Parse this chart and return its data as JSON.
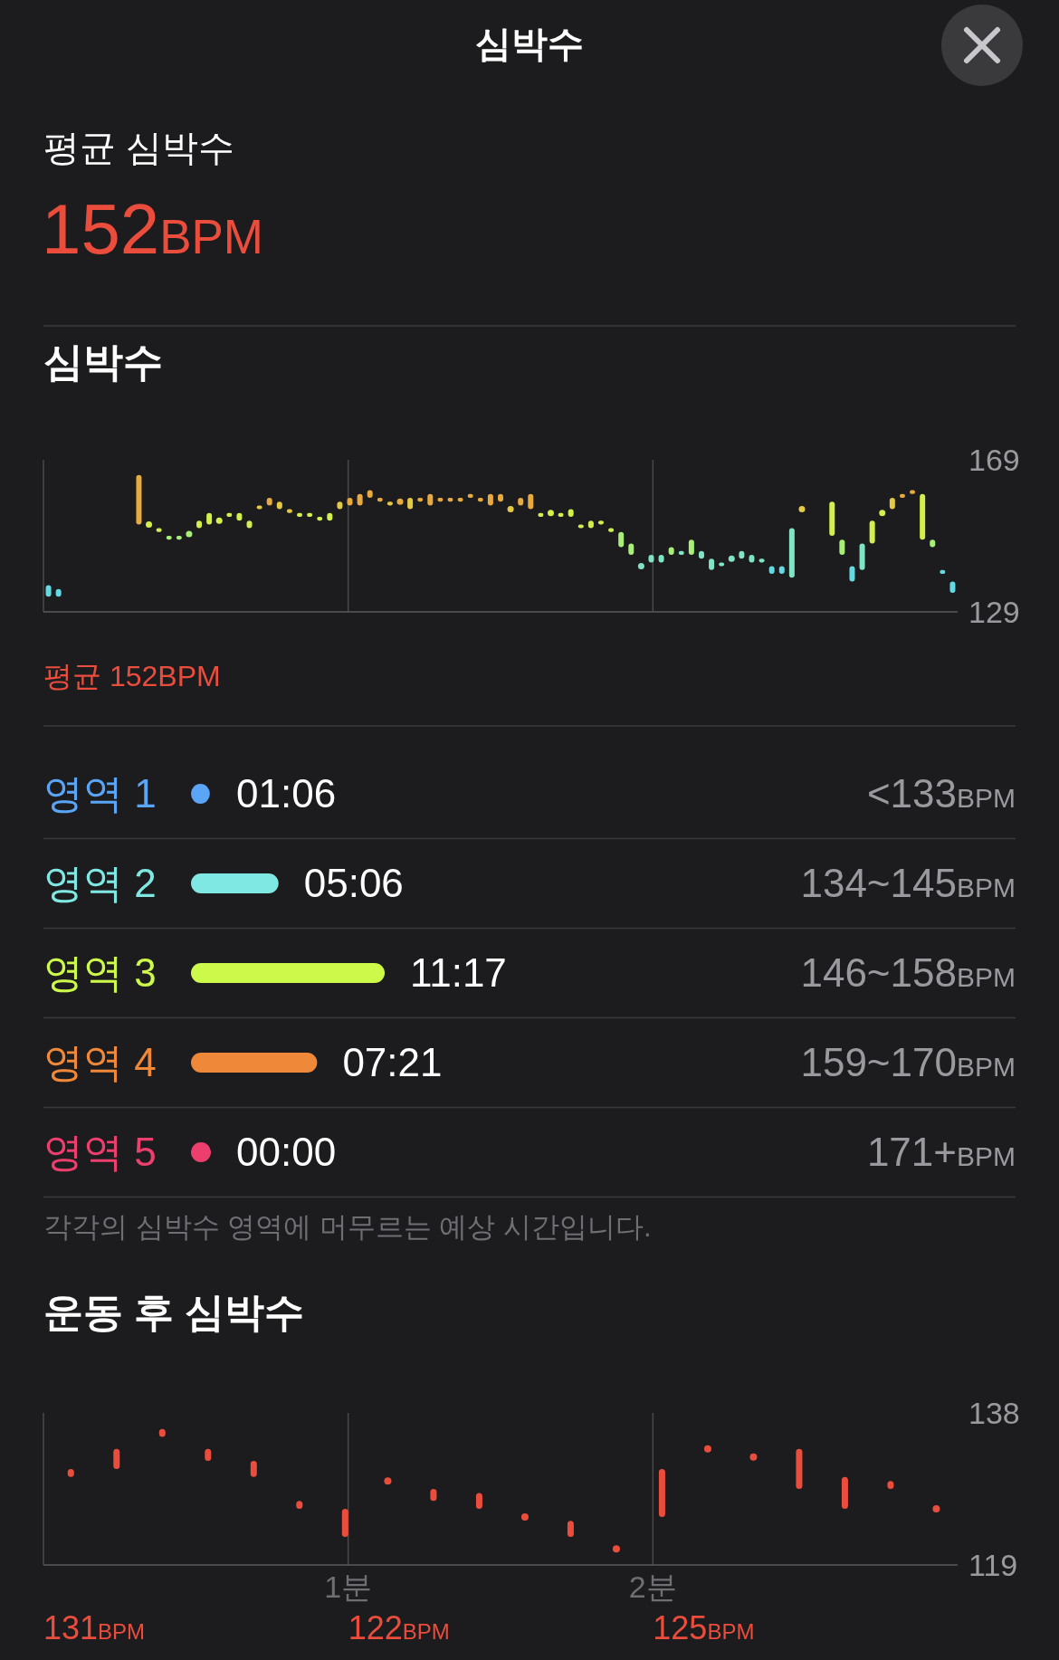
{
  "chart_data": [
    {
      "type": "other",
      "title": "심박수",
      "subtitle": "평균 심박수",
      "annotations": [
        "152BPM"
      ]
    },
    {
      "type": "bar",
      "title": "심박수",
      "categories": [
        null,
        null,
        null,
        null,
        null,
        null,
        null,
        null,
        null,
        null,
        null,
        null,
        null,
        null,
        null,
        null,
        null,
        null,
        null,
        null,
        null,
        null,
        null,
        null,
        null,
        null,
        null,
        null,
        null,
        null,
        null,
        null,
        null,
        null,
        null,
        null,
        null,
        null,
        null,
        null,
        null,
        null,
        null,
        null,
        null,
        null,
        null,
        null,
        null,
        null,
        null,
        null,
        null,
        null,
        null,
        null,
        null,
        null,
        null,
        null,
        null,
        null,
        null,
        null,
        null,
        null,
        null,
        null,
        null,
        null,
        null,
        null,
        null,
        null,
        null,
        null,
        null,
        null,
        null,
        null,
        null,
        null,
        null,
        null,
        null,
        null,
        null,
        null,
        null,
        null,
        null
      ],
      "series": [
        {
          "type": "bar",
          "base": [
            133,
            133,
            null,
            null,
            null,
            null,
            null,
            null,
            null,
            152,
            null,
            150,
            148,
            148,
            null,
            151,
            152,
            null,
            154,
            153,
            151,
            156,
            157,
            156,
            155,
            154,
            154,
            153,
            153,
            156,
            157,
            157,
            159,
            158,
            157,
            null,
            156,
            158,
            157,
            158,
            158,
            158,
            159,
            158,
            157,
            158,
            null,
            157,
            156,
            154,
            null,
            154,
            154,
            151,
            151,
            152,
            150,
            146,
            144,
            null,
            142,
            142,
            144,
            144,
            144,
            143,
            140,
            141,
            null,
            143,
            142,
            142,
            139,
            139,
            138,
            null,
            null,
            null,
            149,
            144,
            137,
            140,
            147,
            null,
            156,
            159,
            160,
            148,
            146,
            139,
            134
          ],
          "values": [
            3,
            2,
            null,
            null,
            null,
            null,
            null,
            null,
            null,
            13,
            null,
            1,
            1,
            1,
            null,
            2,
            3,
            null,
            1,
            2,
            2,
            1,
            2,
            2,
            1,
            1,
            1,
            1,
            2,
            2,
            2,
            3,
            2,
            1,
            1,
            null,
            3,
            1,
            3,
            1,
            1,
            1,
            1,
            1,
            3,
            2,
            null,
            2,
            4,
            1,
            null,
            1,
            2,
            1,
            2,
            1,
            1,
            4,
            3,
            null,
            2,
            2,
            2,
            1,
            4,
            2,
            3,
            1,
            null,
            2,
            2,
            1,
            2,
            2,
            13,
            null,
            null,
            null,
            9,
            4,
            4,
            7,
            6,
            null,
            3,
            1,
            1,
            12,
            2,
            1,
            3
          ],
          "colors": [
            "#62d9e3",
            "#62d9e3",
            null,
            null,
            null,
            null,
            null,
            null,
            null,
            "#e6aa3e",
            null,
            "#d2ef4c",
            "#a8ef78",
            "#a8ef78",
            null,
            "#d2ef4c",
            "#d2ef4c",
            null,
            "#d2ef4c",
            "#d2ef4c",
            "#d2ef4c",
            "#e3c945",
            "#e6aa3e",
            "#e3c945",
            "#e3c945",
            "#d2ef4c",
            "#d2ef4c",
            "#d2ef4c",
            "#d2ef4c",
            "#e3c945",
            "#e6aa3e",
            "#e6aa3e",
            "#e6aa3e",
            "#e6aa3e",
            "#e3c945",
            null,
            "#e3c945",
            "#e6aa3e",
            "#e6aa3e",
            "#e6aa3e",
            "#e6aa3e",
            "#e6aa3e",
            "#e6aa3e",
            "#e6aa3e",
            "#e6aa3e",
            "#e6aa3e",
            null,
            "#e6aa3e",
            "#e6aa3e",
            "#d2ef4c",
            null,
            "#d2ef4c",
            "#d2ef4c",
            "#d2ef4c",
            "#d2ef4c",
            "#d2ef4c",
            "#d2ef4c",
            "#a8ef78",
            "#a8ef78",
            null,
            "#7fe3c4",
            "#7fe3c4",
            "#a8ef78",
            "#7fe3c4",
            "#a8ef78",
            "#7fe3c4",
            "#7fe3c4",
            "#7fe3c4",
            null,
            "#7fe3c4",
            "#7fe3c4",
            "#7fe3c4",
            "#62d9e3",
            "#62d9e3",
            "#7fe3c4",
            null,
            null,
            null,
            "#d2ef4c",
            "#a8ef78",
            "#62d9e3",
            "#7fe3c4",
            "#d2ef4c",
            null,
            "#e3c945",
            "#e6aa3e",
            "#e6aa3e",
            "#d2ef4c",
            "#a8ef78",
            "#62d9e3",
            "#62d9e3"
          ]
        },
        {
          "type": "scatter",
          "values": [
            null,
            null,
            null,
            null,
            null,
            null,
            null,
            null,
            null,
            null,
            152,
            null,
            null,
            null,
            149.5,
            null,
            null,
            153,
            null,
            null,
            null,
            null,
            null,
            null,
            null,
            null,
            null,
            null,
            null,
            null,
            null,
            null,
            null,
            null,
            null,
            158,
            null,
            null,
            null,
            null,
            null,
            null,
            null,
            null,
            null,
            null,
            156,
            null,
            null,
            null,
            155,
            null,
            null,
            null,
            null,
            null,
            null,
            null,
            null,
            141,
            null,
            null,
            null,
            null,
            null,
            null,
            null,
            null,
            143,
            null,
            null,
            null,
            null,
            null,
            null,
            156,
            null,
            null,
            null,
            null,
            null,
            null,
            null,
            155,
            null,
            null,
            null,
            null,
            null,
            null,
            null
          ],
          "colors": [
            null,
            null,
            null,
            null,
            null,
            null,
            null,
            null,
            null,
            null,
            "#d2ef4c",
            null,
            null,
            null,
            "#a8ef78",
            null,
            null,
            "#d2ef4c",
            null,
            null,
            null,
            null,
            null,
            null,
            null,
            null,
            null,
            null,
            null,
            null,
            null,
            null,
            null,
            null,
            null,
            "#e6aa3e",
            null,
            null,
            null,
            null,
            null,
            null,
            null,
            null,
            null,
            null,
            "#e3c945",
            null,
            null,
            null,
            "#d2ef4c",
            null,
            null,
            null,
            null,
            null,
            null,
            null,
            null,
            "#7fe3c4",
            null,
            null,
            null,
            null,
            null,
            null,
            null,
            null,
            "#7fe3c4",
            null,
            null,
            null,
            null,
            null,
            null,
            "#e3c945",
            null,
            null,
            null,
            null,
            null,
            null,
            null,
            "#d2ef4c",
            null,
            null,
            null,
            null,
            null,
            null,
            null
          ]
        }
      ],
      "ylim": [
        129,
        169
      ],
      "yticks": [
        129,
        169
      ],
      "grid": "x",
      "annotations": [
        "평균 152BPM"
      ]
    },
    {
      "type": "bar",
      "orientation": "horizontal",
      "categories": [
        "영역 1",
        "영역 2",
        "영역 3",
        "영역 4",
        "영역 5"
      ],
      "values": [
        66,
        306,
        677,
        441,
        0
      ],
      "value_labels": [
        "01:06",
        "05:06",
        "11:17",
        "07:21",
        "00:00"
      ],
      "colors": [
        "#5aa5f5",
        "#7fe8e3",
        "#cdf94b",
        "#f0883a",
        "#ec3f6e"
      ],
      "annotations": [
        "<133BPM",
        "134~145BPM",
        "146~158BPM",
        "159~170BPM",
        "171+BPM",
        "각각의 심박수 영역에 머무르는 예상 시간입니다."
      ]
    },
    {
      "type": "bar",
      "title": "운동 후 심박수",
      "x": [
        0.09,
        0.24,
        0.39,
        0.54,
        0.69,
        0.84,
        0.99,
        1.13,
        1.28,
        1.43,
        1.58,
        1.73,
        1.88,
        2.03,
        2.18,
        2.33,
        2.48,
        2.63,
        2.78,
        2.93
      ],
      "series": [
        {
          "type": "bar",
          "base": [
            130,
            131,
            135,
            132,
            130,
            126,
            122.5,
            null,
            127,
            126,
            null,
            122.5,
            null,
            125,
            null,
            null,
            128.5,
            126,
            128.5,
            null
          ],
          "values": [
            1,
            2.5,
            1,
            1.5,
            2,
            1,
            3.5,
            null,
            1.5,
            2,
            null,
            2,
            null,
            6,
            null,
            null,
            5,
            4,
            1,
            null
          ]
        },
        {
          "type": "scatter",
          "values": [
            null,
            null,
            null,
            null,
            null,
            null,
            null,
            129.5,
            null,
            null,
            125,
            null,
            121,
            null,
            133.5,
            132.5,
            null,
            null,
            null,
            126
          ]
        }
      ],
      "color": "#eb4d3d",
      "xlim": [
        0,
        3
      ],
      "xticks": [
        {
          "value": 1,
          "label": "1분"
        },
        {
          "value": 2,
          "label": "2분"
        }
      ],
      "ylim": [
        119,
        138
      ],
      "yticks": [
        119,
        138
      ],
      "grid": "x",
      "annotations": [
        "131BPM",
        "122BPM",
        "125BPM"
      ]
    }
  ]
}
